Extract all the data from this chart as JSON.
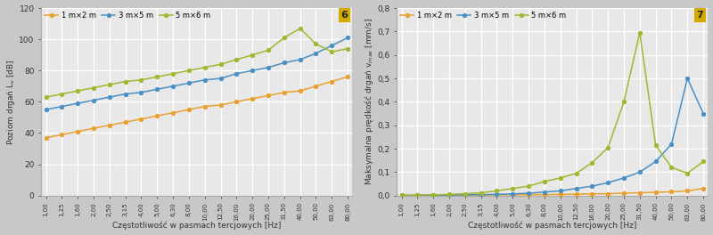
{
  "x_labels": [
    "1,00",
    "1,25",
    "1,60",
    "2,00",
    "2,50",
    "3,15",
    "4,00",
    "5,00",
    "6,30",
    "8,00",
    "10,00",
    "12,50",
    "16,00",
    "20,00",
    "25,00",
    "31,50",
    "40,00",
    "50,00",
    "63,00",
    "80,00"
  ],
  "x_vals": [
    1.0,
    1.25,
    1.6,
    2.0,
    2.5,
    3.15,
    4.0,
    5.0,
    6.3,
    8.0,
    10.0,
    12.5,
    16.0,
    20.0,
    25.0,
    31.5,
    40.0,
    50.0,
    63.0,
    80.0
  ],
  "chart1": {
    "title_num": "6",
    "ylabel": "Poziom drgań L$_v$ [dB]",
    "xlabel": "Częstotliwość w pasmach tercjowych [Hz]",
    "ylim": [
      0,
      120
    ],
    "yticks": [
      0,
      20,
      40,
      60,
      80,
      100,
      120
    ],
    "series": {
      "1x2": [
        37,
        39,
        41,
        43,
        45,
        47,
        49,
        51,
        53,
        55,
        57,
        58,
        60,
        62,
        64,
        66,
        67,
        70,
        73,
        76
      ],
      "3x5": [
        55,
        57,
        59,
        61,
        63,
        65,
        66,
        68,
        70,
        72,
        74,
        75,
        78,
        80,
        82,
        85,
        87,
        91,
        96,
        101
      ],
      "5x6": [
        63,
        65,
        67,
        69,
        71,
        73,
        74,
        76,
        78,
        80,
        82,
        84,
        87,
        90,
        93,
        101,
        107,
        97,
        92,
        94
      ]
    }
  },
  "chart2": {
    "title_num": "7",
    "ylabel": "Maksymalna prędkość drgań v$_{max}$ [mm/s]",
    "xlabel": "Częstotliwość w pasmach tercjowych [Hz]",
    "ylim": [
      0,
      0.8
    ],
    "yticks": [
      0.0,
      0.1,
      0.2,
      0.3,
      0.4,
      0.5,
      0.6,
      0.7,
      0.8
    ],
    "series": {
      "1x2": [
        0.0,
        0.001,
        0.001,
        0.001,
        0.002,
        0.002,
        0.003,
        0.003,
        0.004,
        0.004,
        0.005,
        0.006,
        0.007,
        0.008,
        0.01,
        0.012,
        0.014,
        0.016,
        0.02,
        0.03
      ],
      "3x5": [
        0.001,
        0.001,
        0.002,
        0.002,
        0.003,
        0.004,
        0.005,
        0.007,
        0.01,
        0.015,
        0.02,
        0.03,
        0.04,
        0.055,
        0.075,
        0.1,
        0.145,
        0.22,
        0.5,
        0.35
      ],
      "5x6": [
        0.001,
        0.002,
        0.003,
        0.005,
        0.008,
        0.012,
        0.02,
        0.03,
        0.04,
        0.06,
        0.075,
        0.095,
        0.14,
        0.205,
        0.4,
        0.695,
        0.215,
        0.12,
        0.095,
        0.145
      ]
    }
  },
  "colors": {
    "1x2": "#e8a030",
    "3x5": "#4a90c4",
    "5x6": "#a0b830"
  },
  "legend_labels": {
    "1x2": "1 m×2 m",
    "3x5": "3 m×5 m",
    "5x6": "5 m×6 m"
  },
  "bg_color": "#e8e8e8",
  "grid_color": "#ffffff",
  "badge_color": "#d4aa00"
}
